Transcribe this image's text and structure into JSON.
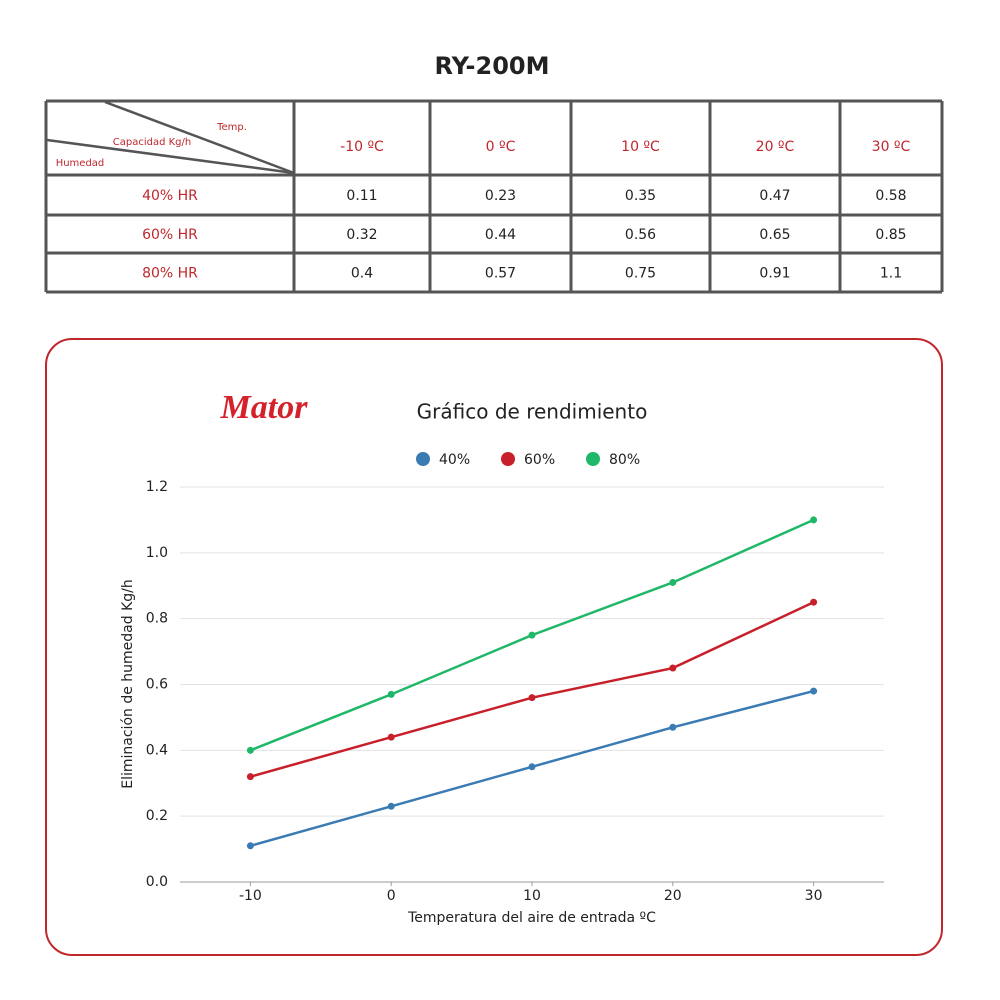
{
  "title": "RY-200M",
  "table": {
    "corner": {
      "temp": "Temp.",
      "capacity": "Capacidad Kg/h",
      "humidity": "Humedad"
    },
    "columns": [
      "-10 ºC",
      "0 ºC",
      "10 ºC",
      "20 ºC",
      "30 ºC"
    ],
    "rows": [
      [
        "40% HR",
        "0.11",
        "0.23",
        "0.35",
        "0.47",
        "0.58"
      ],
      [
        "60% HR",
        "0.32",
        "0.44",
        "0.56",
        "0.65",
        "0.85"
      ],
      [
        "80% HR",
        "0.4",
        "0.57",
        "0.75",
        "0.91",
        "1.1"
      ]
    ]
  },
  "logo": "Mator",
  "chart_data": {
    "type": "line",
    "title": "Gráfico de rendimiento",
    "x": [
      -10,
      0,
      10,
      20,
      30
    ],
    "xlim": [
      -15,
      35
    ],
    "xticks": [
      -10,
      0,
      10,
      20,
      30
    ],
    "ylim": [
      0,
      1.2
    ],
    "yticks": [
      {
        "value": 0,
        "label": "0.0"
      },
      0.2,
      0.4,
      0.6,
      0.8,
      {
        "value": 1,
        "label": "1.0"
      },
      1.2
    ],
    "xlabel": "Temperatura del aire de entrada ºC",
    "ylabel": "Eliminación de humedad Kg/h",
    "grid": true,
    "legend": "top",
    "series": [
      {
        "name": "40%",
        "color": "#3b7bb4",
        "values": [
          0.11,
          0.23,
          0.35,
          0.47,
          0.58
        ]
      },
      {
        "name": "60%",
        "color": "#c8202b",
        "values": [
          0.32,
          0.44,
          0.56,
          0.65,
          0.85
        ]
      },
      {
        "name": "80%",
        "color": "#1fb868",
        "values": [
          0.4,
          0.57,
          0.75,
          0.91,
          1.1
        ]
      }
    ]
  }
}
